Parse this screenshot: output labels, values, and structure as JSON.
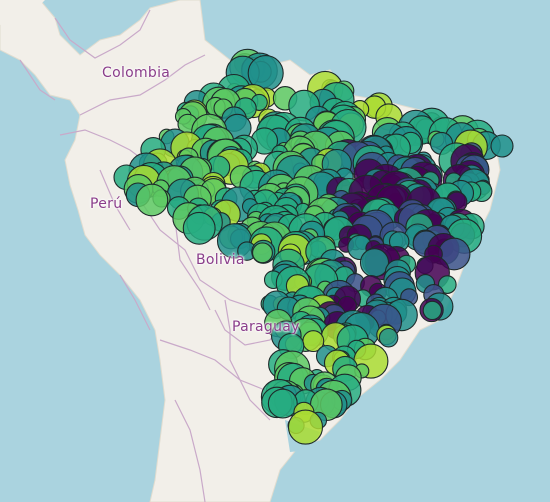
{
  "map": {
    "labels": {
      "colombia": "Colombia",
      "peru": "Perú",
      "bolivia": "Bolivia",
      "paraguay": "Paraguay"
    },
    "colors": {
      "ocean": "#aad3df",
      "land": "#f2efe9",
      "border": "#c9a9c9",
      "label": "#8a3d8a",
      "marker_stroke": "#1e2a2a"
    },
    "marker_colormap": [
      "#440154",
      "#3b528b",
      "#21908c",
      "#27ad81",
      "#5dc963",
      "#aadc32"
    ],
    "marker_style": "viridis-colored bubbles with dark outline"
  }
}
